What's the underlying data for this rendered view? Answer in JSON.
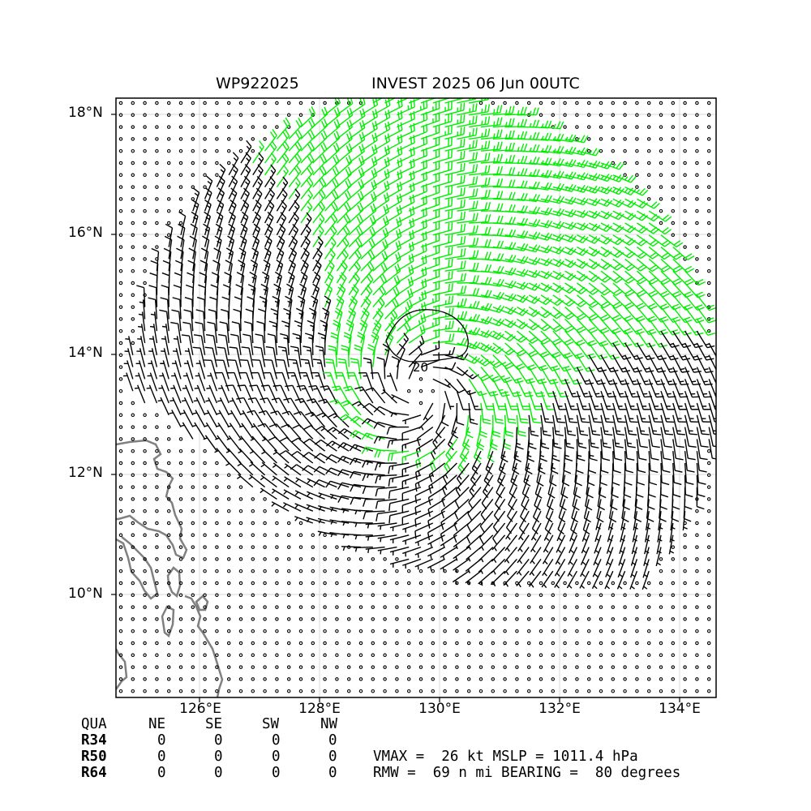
{
  "title": {
    "storm_id": "WP922025",
    "storm_info": "INVEST 2025 06 Jun 00UTC"
  },
  "map": {
    "lat_ticks": [
      "18°N",
      "16°N",
      "14°N",
      "12°N",
      "10°N"
    ],
    "lon_ticks": [
      "126°E",
      "128°E",
      "130°E",
      "132°E",
      "134°E"
    ],
    "contour_label": "20",
    "colors": {
      "barb": "#000000",
      "barb_strong": "#00ee00",
      "coast": "#808080",
      "grid": "#d8d8d8",
      "calm": "#000000"
    },
    "center": {
      "lat": 13.4,
      "lon": 129.7
    }
  },
  "wind_radii": {
    "headers": [
      "QUA",
      "NE",
      "SE",
      "SW",
      "NW"
    ],
    "rows": [
      {
        "label": "R34",
        "values": [
          "0",
          "0",
          "0",
          "0"
        ]
      },
      {
        "label": "R50",
        "values": [
          "0",
          "0",
          "0",
          "0"
        ]
      },
      {
        "label": "R64",
        "values": [
          "0",
          "0",
          "0",
          "0"
        ]
      }
    ]
  },
  "stats": {
    "line1": "VMAX =  26 kt MSLP = 1011.4 hPa",
    "line2": "RMW =  69 n mi BEARING =  80 degrees"
  }
}
